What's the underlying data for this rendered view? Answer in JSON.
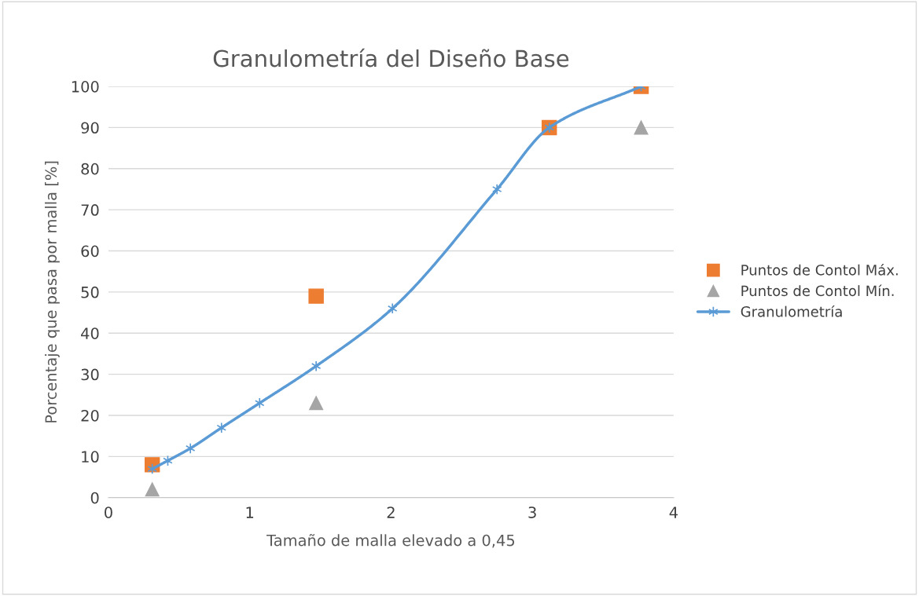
{
  "chart_data": {
    "type": "scatter",
    "title": "Granulometría del Diseño Base",
    "xlabel": "Tamaño de malla elevado a 0,45",
    "ylabel": "Porcentaje que pasa por malla [%]",
    "series": [
      {
        "name": "Puntos de Contol Máx.",
        "type": "scatter",
        "marker": "square",
        "color": "#ed7d31",
        "x": [
          0.31,
          1.47,
          3.12,
          3.77
        ],
        "values": [
          8,
          49,
          90,
          100
        ]
      },
      {
        "name": "Puntos de Contol Mín.",
        "type": "scatter",
        "marker": "triangle",
        "color": "#a5a5a5",
        "x": [
          0.31,
          1.47,
          3.77
        ],
        "values": [
          2,
          23,
          90
        ]
      },
      {
        "name": "Granulometría",
        "type": "line",
        "marker": "cross",
        "color": "#5b9bd5",
        "x": [
          0.31,
          0.42,
          0.58,
          0.8,
          1.07,
          1.47,
          2.01,
          2.75,
          3.12,
          3.77
        ],
        "values": [
          7,
          9,
          12,
          17,
          23,
          32,
          46,
          75,
          90,
          100
        ]
      }
    ],
    "xlim": [
      0,
      4
    ],
    "xticks": [
      0,
      1,
      2,
      3,
      4
    ],
    "ylim": [
      0,
      100
    ],
    "yticks": [
      0,
      10,
      20,
      30,
      40,
      50,
      60,
      70,
      80,
      90,
      100
    ],
    "grid": "y",
    "legend": "right"
  }
}
